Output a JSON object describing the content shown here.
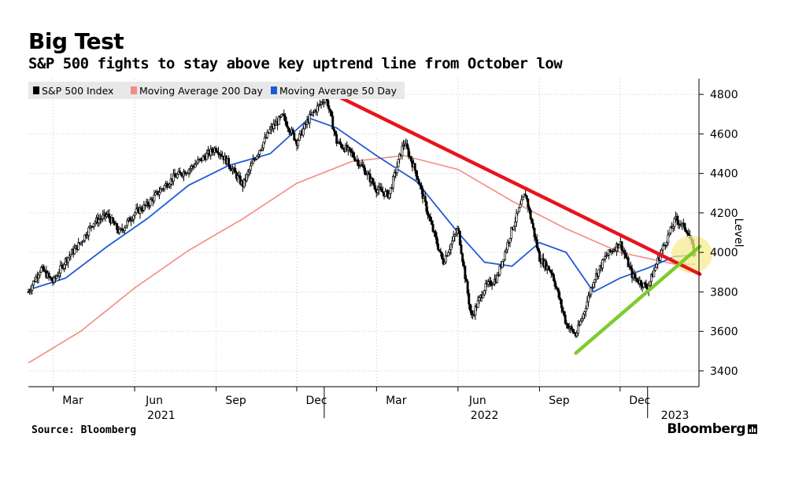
{
  "title": "Big Test",
  "subtitle": "S&P 500 fights to stay above key uptrend line from October low",
  "source": "Source: Bloomberg",
  "brand": "Bloomberg",
  "colors": {
    "sp500": "#000000",
    "ma200": "#f28c82",
    "ma50": "#1f5ad6",
    "resistance": "#e8141c",
    "support": "#7ecb2e",
    "highlight": "#f7ec8f"
  },
  "chart_data": {
    "type": "line",
    "title": "Big Test",
    "subtitle": "S&P 500 fights to stay above key uptrend line from October low",
    "ylabel": "Level",
    "xlabel": "",
    "ylim": [
      3320,
      4880
    ],
    "yticks": [
      3400,
      3600,
      3800,
      4000,
      4200,
      4400,
      4600,
      4800
    ],
    "xlim": [
      "2021-02-01",
      "2023-02-28"
    ],
    "xticks": [
      {
        "date": "2021-03-01",
        "label": "Mar"
      },
      {
        "date": "2021-06-01",
        "label": "Jun"
      },
      {
        "date": "2021-09-01",
        "label": "Sep"
      },
      {
        "date": "2021-12-01",
        "label": "Dec"
      },
      {
        "date": "2022-03-01",
        "label": "Mar"
      },
      {
        "date": "2022-06-01",
        "label": "Jun"
      },
      {
        "date": "2022-09-01",
        "label": "Sep"
      },
      {
        "date": "2022-12-01",
        "label": "Dec"
      }
    ],
    "year_labels": [
      {
        "date": "2021-07-01",
        "label": "2021"
      },
      {
        "date": "2022-07-01",
        "label": "2022"
      },
      {
        "date": "2023-02-01",
        "label": "2023"
      }
    ],
    "grid": true,
    "legend_position": "top-left",
    "series": [
      {
        "name": "S&P 500 Index",
        "style": "candle",
        "points": [
          [
            "2021-02-01",
            3800
          ],
          [
            "2021-02-15",
            3920
          ],
          [
            "2021-03-01",
            3850
          ],
          [
            "2021-03-15",
            3960
          ],
          [
            "2021-04-01",
            4050
          ],
          [
            "2021-04-15",
            4150
          ],
          [
            "2021-05-01",
            4190
          ],
          [
            "2021-05-15",
            4100
          ],
          [
            "2021-06-01",
            4200
          ],
          [
            "2021-06-15",
            4240
          ],
          [
            "2021-07-01",
            4320
          ],
          [
            "2021-07-15",
            4380
          ],
          [
            "2021-08-01",
            4420
          ],
          [
            "2021-08-15",
            4470
          ],
          [
            "2021-09-01",
            4530
          ],
          [
            "2021-09-15",
            4450
          ],
          [
            "2021-10-01",
            4340
          ],
          [
            "2021-10-15",
            4480
          ],
          [
            "2021-11-01",
            4620
          ],
          [
            "2021-11-15",
            4690
          ],
          [
            "2021-12-01",
            4560
          ],
          [
            "2021-12-15",
            4680
          ],
          [
            "2022-01-03",
            4790
          ],
          [
            "2022-01-15",
            4560
          ],
          [
            "2022-02-01",
            4500
          ],
          [
            "2022-02-15",
            4420
          ],
          [
            "2022-03-01",
            4320
          ],
          [
            "2022-03-15",
            4290
          ],
          [
            "2022-04-01",
            4560
          ],
          [
            "2022-04-15",
            4400
          ],
          [
            "2022-05-01",
            4150
          ],
          [
            "2022-05-15",
            3950
          ],
          [
            "2022-06-01",
            4120
          ],
          [
            "2022-06-16",
            3670
          ],
          [
            "2022-07-01",
            3820
          ],
          [
            "2022-07-15",
            3870
          ],
          [
            "2022-08-01",
            4120
          ],
          [
            "2022-08-16",
            4300
          ],
          [
            "2022-09-01",
            3970
          ],
          [
            "2022-09-15",
            3900
          ],
          [
            "2022-10-01",
            3640
          ],
          [
            "2022-10-12",
            3580
          ],
          [
            "2022-10-20",
            3680
          ],
          [
            "2022-11-01",
            3860
          ],
          [
            "2022-11-15",
            3980
          ],
          [
            "2022-12-01",
            4050
          ],
          [
            "2022-12-15",
            3880
          ],
          [
            "2023-01-01",
            3820
          ],
          [
            "2023-01-15",
            3990
          ],
          [
            "2023-02-02",
            4170
          ],
          [
            "2023-02-15",
            4110
          ],
          [
            "2023-02-24",
            3975
          ]
        ]
      },
      {
        "name": "Moving Average 200 Day",
        "style": "line",
        "points": [
          [
            "2021-02-01",
            3440
          ],
          [
            "2021-04-01",
            3600
          ],
          [
            "2021-06-01",
            3820
          ],
          [
            "2021-08-01",
            4010
          ],
          [
            "2021-10-01",
            4170
          ],
          [
            "2021-12-01",
            4350
          ],
          [
            "2022-02-01",
            4460
          ],
          [
            "2022-04-01",
            4490
          ],
          [
            "2022-06-01",
            4420
          ],
          [
            "2022-08-01",
            4260
          ],
          [
            "2022-10-01",
            4120
          ],
          [
            "2022-12-01",
            4000
          ],
          [
            "2023-02-01",
            3940
          ],
          [
            "2023-02-24",
            3940
          ]
        ]
      },
      {
        "name": "Moving Average 50 Day",
        "style": "line",
        "points": [
          [
            "2021-02-01",
            3810
          ],
          [
            "2021-03-15",
            3870
          ],
          [
            "2021-05-01",
            4030
          ],
          [
            "2021-06-15",
            4170
          ],
          [
            "2021-08-01",
            4340
          ],
          [
            "2021-09-15",
            4440
          ],
          [
            "2021-11-01",
            4500
          ],
          [
            "2021-12-15",
            4680
          ],
          [
            "2022-01-15",
            4630
          ],
          [
            "2022-03-01",
            4490
          ],
          [
            "2022-04-15",
            4360
          ],
          [
            "2022-06-01",
            4100
          ],
          [
            "2022-07-01",
            3950
          ],
          [
            "2022-08-01",
            3930
          ],
          [
            "2022-09-01",
            4050
          ],
          [
            "2022-10-01",
            4000
          ],
          [
            "2022-11-01",
            3800
          ],
          [
            "2022-12-01",
            3870
          ],
          [
            "2023-01-01",
            3920
          ],
          [
            "2023-02-01",
            3980
          ],
          [
            "2023-02-24",
            3985
          ]
        ]
      }
    ],
    "annotations": [
      {
        "name": "resistance-trendline",
        "from": [
          "2022-01-03",
          4820
        ],
        "to": [
          "2023-03-01",
          3890
        ]
      },
      {
        "name": "support-trendline",
        "from": [
          "2022-10-12",
          3490
        ],
        "to": [
          "2023-03-01",
          4030
        ]
      },
      {
        "name": "test-zone",
        "at": [
          "2023-02-20",
          3990
        ]
      }
    ]
  }
}
